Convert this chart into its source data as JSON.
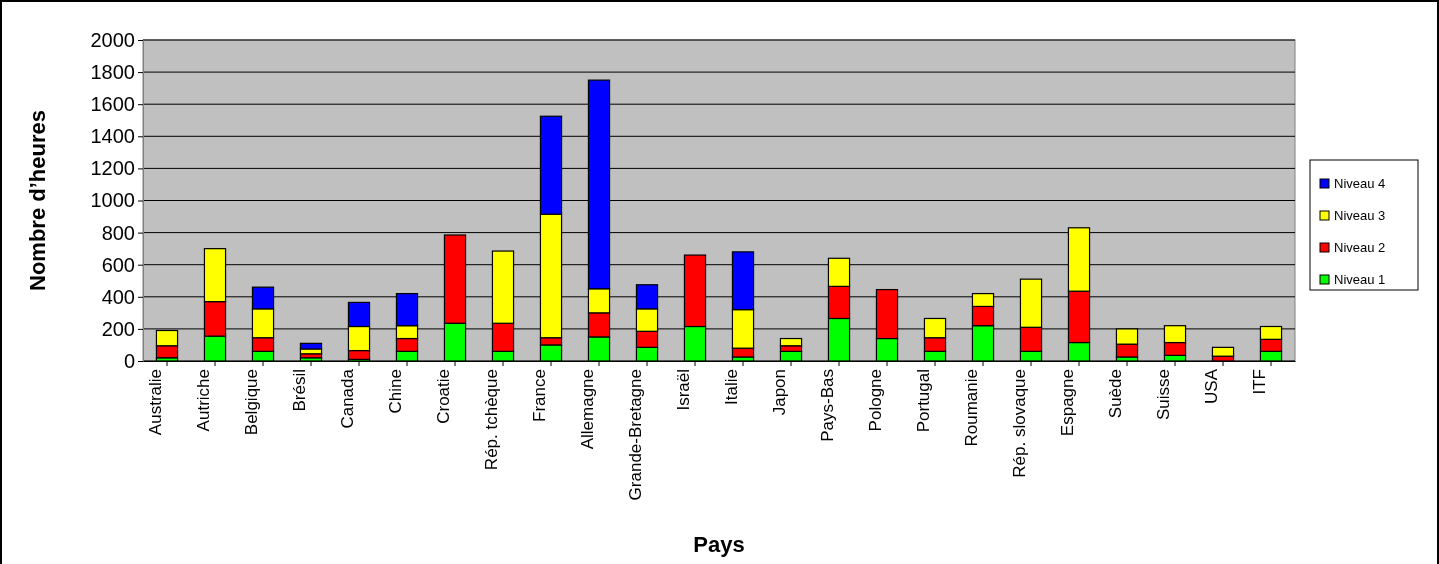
{
  "chart_data": {
    "type": "bar",
    "stacked": true,
    "xlabel": "Pays",
    "ylabel": "Nombre d’heures",
    "categories": [
      "Australie",
      "Autriche",
      "Belgique",
      "Brésil",
      "Canada",
      "Chine",
      "Croatie",
      "Rép. tchèque",
      "France",
      "Allemagne",
      "Grande-Bretagne",
      "Israël",
      "Italie",
      "Japon",
      "Pays-Bas",
      "Pologne",
      "Portugal",
      "Roumanie",
      "Rép. slovaque",
      "Espagne",
      "Suède",
      "Suisse",
      "USA",
      "ITF"
    ],
    "series": [
      {
        "name": "Niveau 1",
        "color": "#00ff00",
        "values": [
          20,
          155,
          60,
          20,
          10,
          60,
          235,
          60,
          100,
          150,
          85,
          215,
          25,
          60,
          265,
          140,
          60,
          220,
          60,
          115,
          25,
          35,
          0,
          60
        ]
      },
      {
        "name": "Niveau 2",
        "color": "#ff0000",
        "values": [
          75,
          215,
          85,
          25,
          55,
          80,
          550,
          175,
          45,
          150,
          100,
          445,
          55,
          35,
          200,
          305,
          85,
          120,
          150,
          320,
          80,
          80,
          30,
          75
        ]
      },
      {
        "name": "Niveau 3",
        "color": "#ffff00",
        "values": [
          95,
          330,
          180,
          30,
          150,
          80,
          null,
          450,
          770,
          150,
          140,
          null,
          240,
          45,
          175,
          null,
          120,
          80,
          300,
          395,
          95,
          105,
          55,
          80
        ]
      },
      {
        "name": "Niveau 4",
        "color": "#0000ff",
        "values": [
          null,
          null,
          135,
          35,
          150,
          200,
          null,
          null,
          610,
          1300,
          150,
          null,
          360,
          null,
          null,
          null,
          null,
          null,
          null,
          null,
          null,
          null,
          null,
          null
        ]
      }
    ],
    "ylim": [
      0,
      2000
    ],
    "yticks": [
      0,
      200,
      400,
      600,
      800,
      1000,
      1200,
      1400,
      1600,
      1800,
      2000
    ],
    "grid": "y",
    "legend": "right"
  }
}
